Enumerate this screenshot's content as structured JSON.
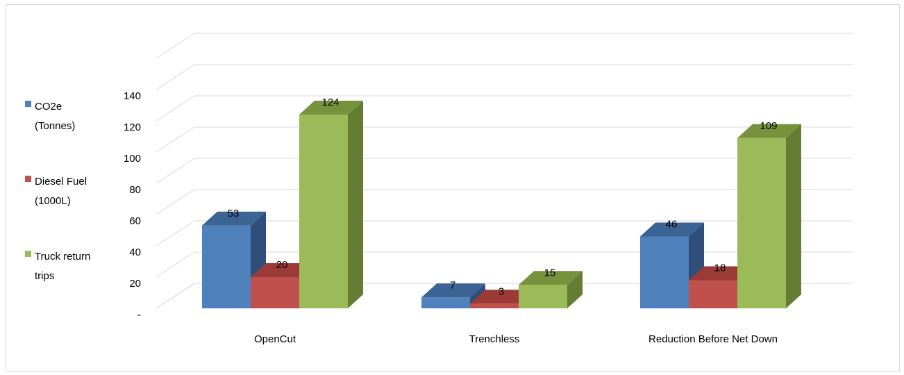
{
  "chart_data": {
    "type": "bar",
    "title": "",
    "xlabel": "",
    "ylabel": "",
    "categories": [
      "OpenCut",
      "Trenchless",
      "Reduction Before Net Down"
    ],
    "series": [
      {
        "name": "CO2e (Tonnes)",
        "values": [
          53,
          7,
          46
        ],
        "color": "#4f81bd",
        "top": "#3b6394",
        "side": "#2f4f7a"
      },
      {
        "name": "Diesel Fuel (1000L)",
        "values": [
          20,
          3,
          18
        ],
        "color": "#c0504d",
        "top": "#9b3a37",
        "side": "#8a3431"
      },
      {
        "name": "Truck return trips",
        "values": [
          124,
          15,
          109
        ],
        "color": "#9bbb59",
        "top": "#76923c",
        "side": "#647d33"
      }
    ],
    "ylim": [
      0,
      160
    ],
    "yticks": [
      "-",
      "20",
      "40",
      "60",
      "80",
      "100",
      "120",
      "140"
    ],
    "ytick_values": [
      0,
      20,
      40,
      60,
      80,
      100,
      120,
      140
    ],
    "grid": true,
    "legend_position": "left",
    "style": "3d-clustered-column"
  }
}
